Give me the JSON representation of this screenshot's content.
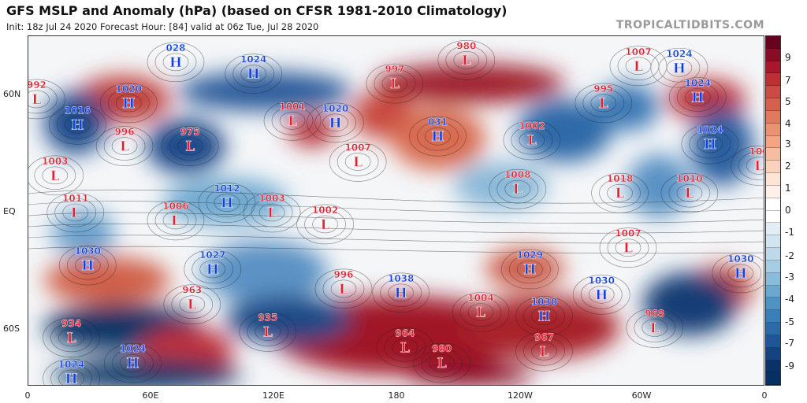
{
  "header": {
    "title": "GFS MSLP and Anomaly (hPa) (based on CFSR 1981-2010 Climatology)",
    "subtitle": "Init: 18z Jul 24 2020   Forecast Hour: [84]   valid at 06z Tue, Jul 28 2020",
    "logo": "TROPICALTIDBITS.COM"
  },
  "colorbar": {
    "labels": [
      "9",
      "7",
      "5",
      "4",
      "3",
      "2",
      "1",
      "0",
      "-1",
      "-2",
      "-3",
      "-4",
      "-5",
      "-7",
      "-9"
    ],
    "colors": [
      "#67001f",
      "#8a0b25",
      "#a8172b",
      "#bd2f35",
      "#cb4a42",
      "#d6604d",
      "#e0795f",
      "#ea9274",
      "#f4a582",
      "#f7bda0",
      "#fad1bb",
      "#fde4d5",
      "#fff1ea",
      "#ffffff",
      "#ffffff",
      "#e2edf4",
      "#d1e5f0",
      "#bcdaea",
      "#a5cde3",
      "#88bcdb",
      "#6aa8cf",
      "#4f93c3",
      "#3b7fb8",
      "#2d6aa9",
      "#205697",
      "#15437f",
      "#0a3268",
      "#053061"
    ]
  },
  "axes": {
    "x_ticks": [
      "0",
      "60E",
      "120E",
      "180",
      "120W",
      "60W",
      "0"
    ],
    "y_ticks": [
      "60N",
      "EQ",
      "60S"
    ]
  },
  "pressure_centers": [
    {
      "type": "H",
      "value": "028",
      "lon": 72,
      "lat": 77
    },
    {
      "type": "H",
      "value": "1024",
      "lon": 110,
      "lat": 71
    },
    {
      "type": "L",
      "value": "980",
      "lon": 214,
      "lat": 78
    },
    {
      "type": "L",
      "value": "997",
      "lon": 179,
      "lat": 66
    },
    {
      "type": "L",
      "value": "1007",
      "lon": 298,
      "lat": 75
    },
    {
      "type": "H",
      "value": "1024",
      "lon": 318,
      "lat": 74
    },
    {
      "type": "L",
      "value": "992",
      "lon": 4,
      "lat": 58
    },
    {
      "type": "H",
      "value": "1020",
      "lon": 49,
      "lat": 56
    },
    {
      "type": "H",
      "value": "1016",
      "lon": 24,
      "lat": 45
    },
    {
      "type": "L",
      "value": "996",
      "lon": 47,
      "lat": 34
    },
    {
      "type": "L",
      "value": "975",
      "lon": 79,
      "lat": 34
    },
    {
      "type": "H",
      "value": "1020",
      "lon": 150,
      "lat": 46
    },
    {
      "type": "L",
      "value": "1001",
      "lon": 129,
      "lat": 47
    },
    {
      "type": "H",
      "value": "031",
      "lon": 200,
      "lat": 39
    },
    {
      "type": "L",
      "value": "995",
      "lon": 281,
      "lat": 56
    },
    {
      "type": "H",
      "value": "1024",
      "lon": 327,
      "lat": 59
    },
    {
      "type": "L",
      "value": "1002",
      "lon": 246,
      "lat": 37
    },
    {
      "type": "H",
      "value": "1024",
      "lon": 333,
      "lat": 35
    },
    {
      "type": "L",
      "value": "1007",
      "lon": 161,
      "lat": 26
    },
    {
      "type": "L",
      "value": "1003",
      "lon": 13,
      "lat": 19
    },
    {
      "type": "L",
      "value": "1008",
      "lon": 239,
      "lat": 12
    },
    {
      "type": "L",
      "value": "1018",
      "lon": 289,
      "lat": 10
    },
    {
      "type": "L",
      "value": "1010",
      "lon": 323,
      "lat": 10
    },
    {
      "type": "L",
      "value": "100",
      "lon": 357,
      "lat": 24
    },
    {
      "type": "H",
      "value": "1012",
      "lon": 97,
      "lat": 5
    },
    {
      "type": "L",
      "value": "1006",
      "lon": 72,
      "lat": -4
    },
    {
      "type": "L",
      "value": "1003",
      "lon": 119,
      "lat": 0
    },
    {
      "type": "L",
      "value": "1002",
      "lon": 145,
      "lat": -6
    },
    {
      "type": "L",
      "value": "1011",
      "lon": 23,
      "lat": 0
    },
    {
      "type": "L",
      "value": "1007",
      "lon": 293,
      "lat": -18
    },
    {
      "type": "H",
      "value": "1030",
      "lon": 29,
      "lat": -27
    },
    {
      "type": "H",
      "value": "1027",
      "lon": 90,
      "lat": -29
    },
    {
      "type": "L",
      "value": "996",
      "lon": 154,
      "lat": -39
    },
    {
      "type": "H",
      "value": "1038",
      "lon": 182,
      "lat": -41
    },
    {
      "type": "H",
      "value": "1029",
      "lon": 245,
      "lat": -29
    },
    {
      "type": "H",
      "value": "1030",
      "lon": 280,
      "lat": -42
    },
    {
      "type": "H",
      "value": "1030",
      "lon": 348,
      "lat": -31
    },
    {
      "type": "L",
      "value": "963",
      "lon": 80,
      "lat": -47
    },
    {
      "type": "L",
      "value": "1004",
      "lon": 221,
      "lat": -51
    },
    {
      "type": "H",
      "value": "1030",
      "lon": 252,
      "lat": -53
    },
    {
      "type": "L",
      "value": "934",
      "lon": 21,
      "lat": -64
    },
    {
      "type": "L",
      "value": "935",
      "lon": 117,
      "lat": -61
    },
    {
      "type": "L",
      "value": "964",
      "lon": 184,
      "lat": -69
    },
    {
      "type": "L",
      "value": "968",
      "lon": 306,
      "lat": -59
    },
    {
      "type": "L",
      "value": "967",
      "lon": 252,
      "lat": -71
    },
    {
      "type": "L",
      "value": "980",
      "lon": 202,
      "lat": -77
    },
    {
      "type": "H",
      "value": "1024",
      "lon": 51,
      "lat": -77
    },
    {
      "type": "H",
      "value": "1024",
      "lon": 21,
      "lat": -85
    }
  ],
  "colors": {
    "high": "#1040e0",
    "low": "#e02030",
    "positive": "#b2182b",
    "negative": "#2166ac"
  }
}
